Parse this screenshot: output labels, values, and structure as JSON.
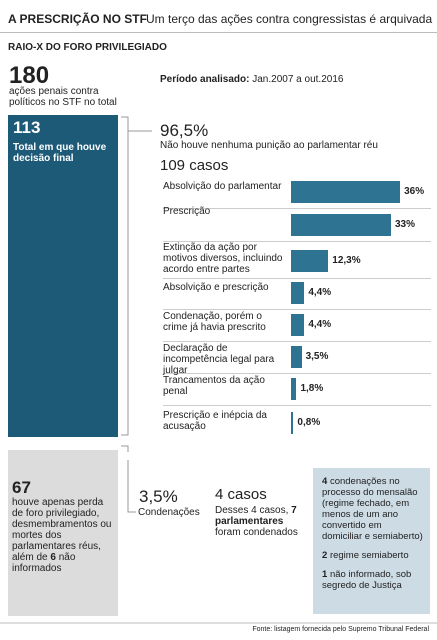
{
  "header": {
    "title": "A PRESCRIÇÃO NO STF",
    "subtitle": "Um terço das ações contra congressistas é arquivada"
  },
  "section_title": "RAIO-X DO FORO PRIVILEGIADO",
  "total": {
    "value": "180",
    "label": "ações penais contra políticos no STF no total"
  },
  "period": {
    "label": "Período analisado:",
    "value": "Jan.2007 a out.2016"
  },
  "decided": {
    "value": "113",
    "label": "Total em que houve decisão final"
  },
  "undecided": {
    "value": "67",
    "label_before": "houve apenas perda de foro privilegiado, desmembramentos ou mortes dos parlamentares réus, além de",
    "count": "6",
    "label_after": "não informados"
  },
  "no_punishment": {
    "percent": "96,5%",
    "label": "Não houve nenhuma punição ao parlamentar réu",
    "cases": "109 casos"
  },
  "chart_data": {
    "type": "bar",
    "orientation": "horizontal",
    "color": "#2f7393",
    "categories": [
      "Absolvição do parlamentar",
      "Prescrição",
      "Extinção da ação por motivos diversos, incluindo acordo entre partes",
      "Absolvição e prescrição",
      "Condenação, porém o crime já havia prescrito",
      "Declaração de incompetência legal para julgar",
      "Trancamentos da ação penal",
      "Prescrição e inépcia da acusação"
    ],
    "values": [
      36,
      33,
      12.3,
      4.4,
      4.4,
      3.5,
      1.8,
      0.8
    ],
    "value_labels": [
      "36%",
      "33%",
      "12,3%",
      "4,4%",
      "4,4%",
      "3,5%",
      "1,8%",
      "0,8%"
    ]
  },
  "convictions": {
    "percent": "3,5%",
    "label": "Condenações",
    "cases": "4 casos",
    "detail_before": "Desses 4 casos,",
    "detail_bold": "7 parlamentares",
    "detail_after": "foram condenados",
    "items": [
      {
        "count": "4",
        "text": "condenações no processo do mensalão (regime fechado, em menos de um ano convertido em domiciliar e semiaberto)"
      },
      {
        "count": "2",
        "text": "regime semiaberto"
      },
      {
        "count": "1",
        "text": "não informado, sob segredo de Justiça"
      }
    ]
  },
  "source": "Fonte: listagem fornecida pelo Supremo Tribunal Federal"
}
